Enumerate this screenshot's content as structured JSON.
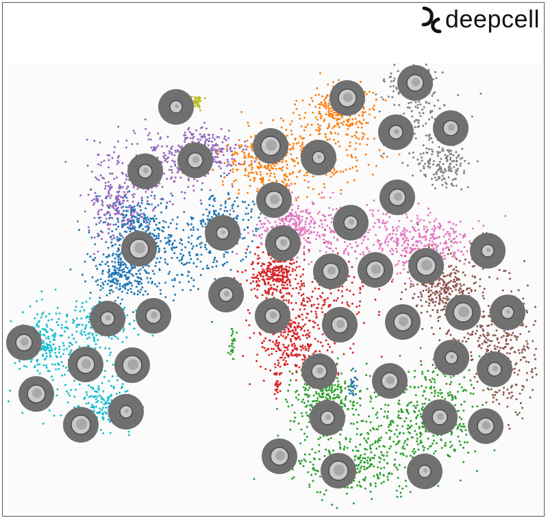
{
  "brand": {
    "name": "deepcell",
    "logo_icon": "deepcell-mark-icon",
    "text_color": "#111111"
  },
  "chart_data": {
    "type": "scatter",
    "title": "",
    "xlabel": "",
    "ylabel": "",
    "axes_visible": false,
    "grid": false,
    "legend": "none",
    "cell_thumbnail": {
      "ring_color": "#707070",
      "cell_color": "#c9c9c9"
    },
    "series": [
      {
        "color": "#bcbd22",
        "points": 90
      },
      {
        "color": "#9467bd",
        "points": 1800
      },
      {
        "color": "#1f77b4",
        "points": 2300
      },
      {
        "color": "#17becf",
        "points": 1800
      },
      {
        "color": "#ff7f0e",
        "points": 1900
      },
      {
        "color": "#7f7f7f",
        "points": 1000
      },
      {
        "color": "#e377c2",
        "points": 2100
      },
      {
        "color": "#d62728",
        "points": 2000
      },
      {
        "color": "#8c564b",
        "points": 1800
      },
      {
        "color": "#2ca02c",
        "points": 2600
      }
    ],
    "cell_thumbnail_count": 42
  }
}
